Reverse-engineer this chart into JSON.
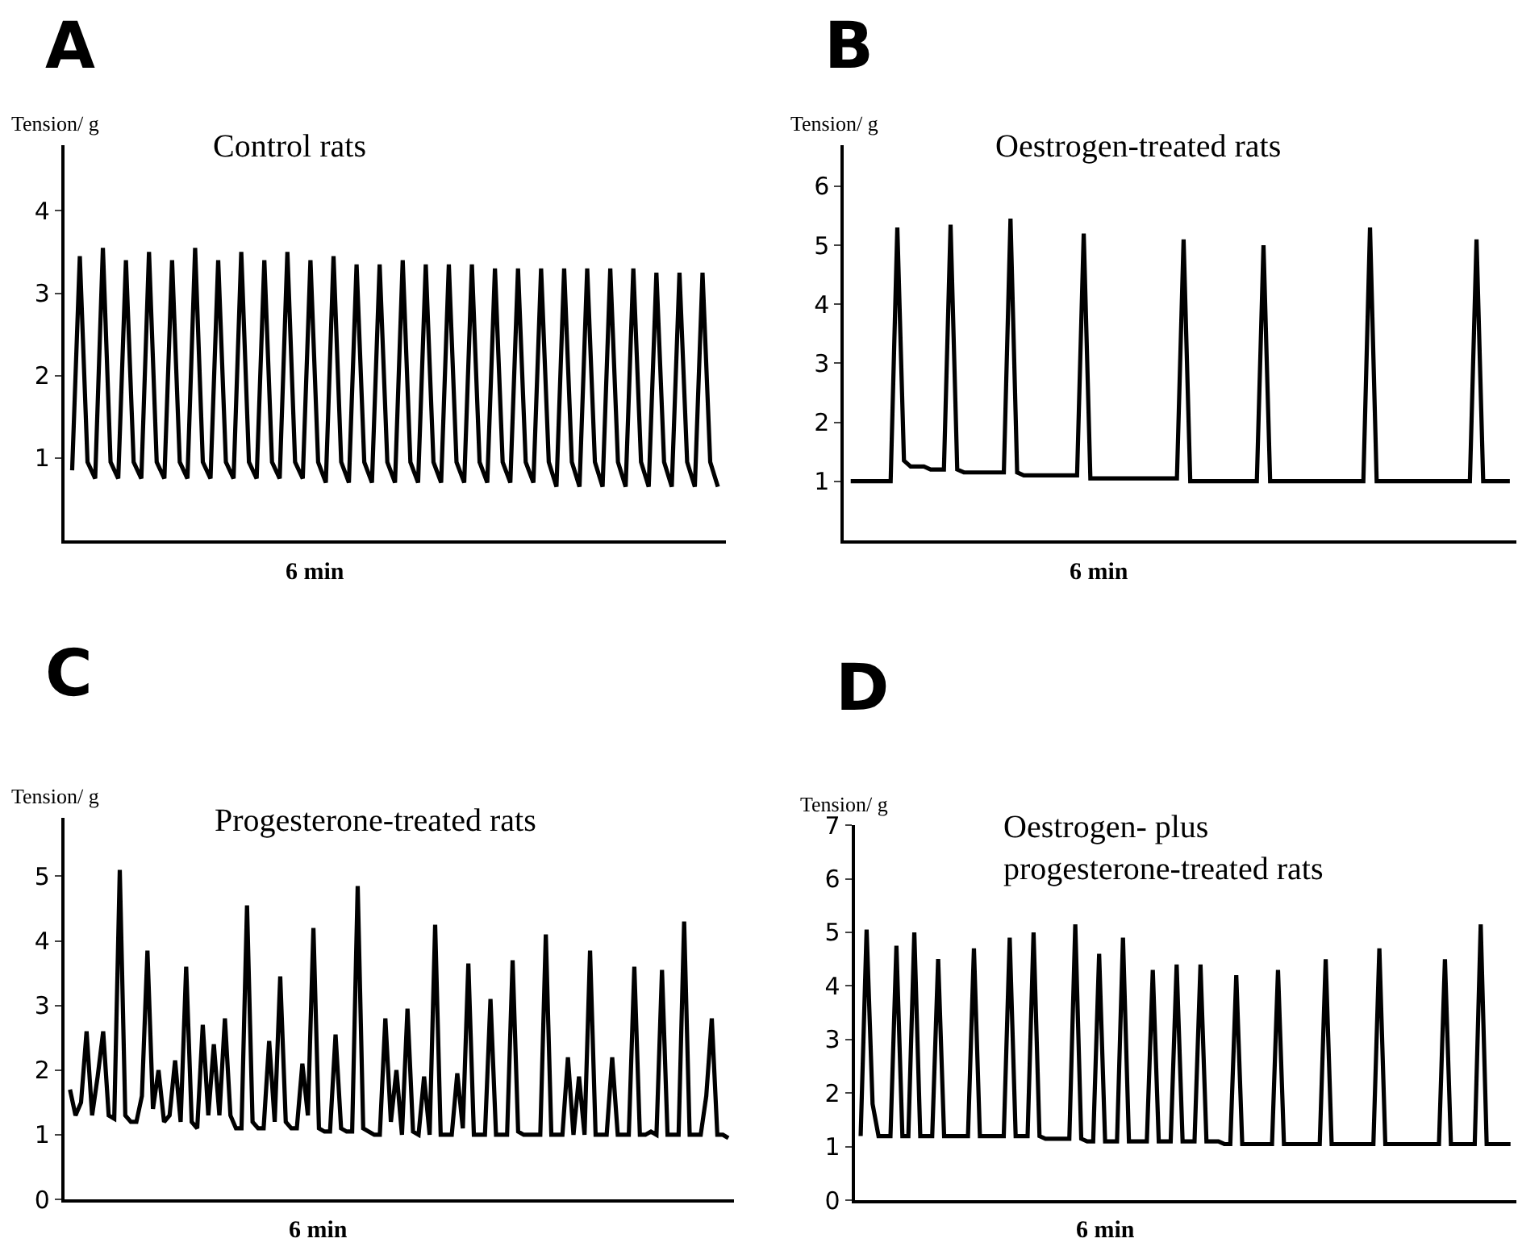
{
  "chart_data": [
    {
      "type": "line",
      "title": "A",
      "subtitle": "Control rats",
      "ylabel": "Tension/ g",
      "annotations": [
        "6 min"
      ],
      "tick_labels": "y",
      "ylim": [
        0,
        4.8
      ],
      "yticks": [
        1,
        2,
        3,
        4
      ],
      "categories": [
        null,
        null,
        null,
        null,
        null,
        null,
        null,
        null,
        null,
        null,
        null,
        null,
        null,
        null,
        null,
        null,
        null,
        null,
        null,
        null,
        null,
        null,
        null,
        null,
        null,
        null,
        null,
        null,
        null,
        null,
        null,
        null,
        null,
        null,
        null,
        null,
        null,
        null,
        null,
        null,
        null,
        null,
        null,
        null,
        null,
        null,
        null,
        null,
        null,
        null,
        null,
        null,
        null,
        null,
        null,
        null,
        null,
        null,
        null,
        null,
        null,
        null,
        null,
        null,
        null,
        null,
        null,
        null,
        null,
        null,
        null,
        null,
        null,
        null,
        null,
        null,
        null,
        null,
        null,
        null,
        null,
        null,
        null,
        null,
        null
      ],
      "series": [
        {
          "color": "#000000",
          "values": [
            0.85,
            3.45,
            0.95,
            0.75,
            3.55,
            0.95,
            0.75,
            3.4,
            0.95,
            0.75,
            3.5,
            0.95,
            0.75,
            3.4,
            0.95,
            0.75,
            3.55,
            0.95,
            0.75,
            3.4,
            0.95,
            0.75,
            3.5,
            0.95,
            0.75,
            3.4,
            0.95,
            0.75,
            3.5,
            0.95,
            0.75,
            3.4,
            0.95,
            0.7,
            3.45,
            0.95,
            0.7,
            3.35,
            0.95,
            0.7,
            3.35,
            0.95,
            0.7,
            3.4,
            0.95,
            0.7,
            3.35,
            0.95,
            0.7,
            3.35,
            0.95,
            0.7,
            3.35,
            0.95,
            0.7,
            3.3,
            0.95,
            0.7,
            3.3,
            0.95,
            0.7,
            3.3,
            0.95,
            0.65,
            3.3,
            0.95,
            0.65,
            3.3,
            0.95,
            0.65,
            3.3,
            0.95,
            0.65,
            3.3,
            0.95,
            0.65,
            3.25,
            0.95,
            0.65,
            3.25,
            0.95,
            0.65,
            3.25,
            0.95,
            0.65
          ]
        }
      ]
    },
    {
      "type": "line",
      "title": "B",
      "subtitle": "Oestrogen-treated rats",
      "ylabel": "Tension/ g",
      "annotations": [
        "6 min"
      ],
      "tick_labels": "y",
      "ylim": [
        0,
        6.7
      ],
      "yticks": [
        1,
        2,
        3,
        4,
        5,
        6
      ],
      "categories": [
        null,
        null,
        null,
        null,
        null,
        null,
        null,
        null,
        null,
        null,
        null,
        null,
        null,
        null,
        null,
        null,
        null,
        null,
        null,
        null,
        null,
        null,
        null,
        null,
        null,
        null,
        null,
        null,
        null,
        null,
        null,
        null,
        null,
        null,
        null,
        null,
        null,
        null,
        null,
        null,
        null,
        null,
        null,
        null,
        null,
        null,
        null,
        null,
        null,
        null,
        null,
        null,
        null,
        null,
        null,
        null,
        null,
        null,
        null,
        null,
        null,
        null,
        null,
        null,
        null,
        null,
        null,
        null,
        null,
        null,
        null,
        null,
        null,
        null,
        null,
        null,
        null,
        null,
        null,
        null,
        null,
        null,
        null,
        null,
        null,
        null,
        null,
        null,
        null,
        null,
        null,
        null,
        null,
        null,
        null,
        null,
        null,
        null,
        null,
        null
      ],
      "series": [
        {
          "color": "#000000",
          "values": [
            1.0,
            1.0,
            1.0,
            1.0,
            1.0,
            1.0,
            1.0,
            5.3,
            1.35,
            1.25,
            1.25,
            1.25,
            1.2,
            1.2,
            1.2,
            5.35,
            1.2,
            1.15,
            1.15,
            1.15,
            1.15,
            1.15,
            1.15,
            1.15,
            5.45,
            1.15,
            1.1,
            1.1,
            1.1,
            1.1,
            1.1,
            1.1,
            1.1,
            1.1,
            1.1,
            5.2,
            1.05,
            1.05,
            1.05,
            1.05,
            1.05,
            1.05,
            1.05,
            1.05,
            1.05,
            1.05,
            1.05,
            1.05,
            1.05,
            1.05,
            5.1,
            1.0,
            1.0,
            1.0,
            1.0,
            1.0,
            1.0,
            1.0,
            1.0,
            1.0,
            1.0,
            1.0,
            5.0,
            1.0,
            1.0,
            1.0,
            1.0,
            1.0,
            1.0,
            1.0,
            1.0,
            1.0,
            1.0,
            1.0,
            1.0,
            1.0,
            1.0,
            1.0,
            5.3,
            1.0,
            1.0,
            1.0,
            1.0,
            1.0,
            1.0,
            1.0,
            1.0,
            1.0,
            1.0,
            1.0,
            1.0,
            1.0,
            1.0,
            1.0,
            5.1,
            1.0,
            1.0,
            1.0,
            1.0,
            1.0
          ]
        }
      ]
    },
    {
      "type": "line",
      "title": "C",
      "subtitle": "Progesterone-treated rats",
      "ylabel": "Tension/ g",
      "annotations": [
        "6 min"
      ],
      "tick_labels": "y",
      "ylim": [
        0,
        5.9
      ],
      "yticks": [
        0,
        1,
        2,
        3,
        4,
        5
      ],
      "categories": [
        null,
        null,
        null,
        null,
        null,
        null,
        null,
        null,
        null,
        null,
        null,
        null,
        null,
        null,
        null,
        null,
        null,
        null,
        null,
        null,
        null,
        null,
        null,
        null,
        null,
        null,
        null,
        null,
        null,
        null,
        null,
        null,
        null,
        null,
        null,
        null,
        null,
        null,
        null,
        null,
        null,
        null,
        null,
        null,
        null,
        null,
        null,
        null,
        null,
        null,
        null,
        null,
        null,
        null,
        null,
        null,
        null,
        null,
        null,
        null,
        null,
        null,
        null,
        null,
        null,
        null,
        null,
        null,
        null,
        null,
        null,
        null,
        null,
        null,
        null,
        null,
        null,
        null,
        null,
        null,
        null,
        null,
        null,
        null,
        null,
        null,
        null,
        null,
        null,
        null,
        null,
        null,
        null,
        null,
        null,
        null,
        null,
        null,
        null,
        null,
        null,
        null,
        null,
        null,
        null,
        null,
        null,
        null,
        null,
        null,
        null,
        null,
        null,
        null,
        null,
        null,
        null,
        null,
        null,
        null
      ],
      "series": [
        {
          "color": "#000000",
          "values": [
            1.7,
            1.3,
            1.5,
            2.6,
            1.3,
            1.9,
            2.6,
            1.3,
            1.25,
            5.1,
            1.3,
            1.2,
            1.2,
            1.6,
            3.85,
            1.4,
            2.0,
            1.2,
            1.3,
            2.15,
            1.2,
            3.6,
            1.2,
            1.1,
            2.7,
            1.3,
            2.4,
            1.3,
            2.8,
            1.3,
            1.1,
            1.1,
            4.55,
            1.2,
            1.1,
            1.1,
            2.45,
            1.2,
            3.45,
            1.2,
            1.1,
            1.1,
            2.1,
            1.3,
            4.2,
            1.1,
            1.05,
            1.05,
            2.55,
            1.1,
            1.05,
            1.05,
            4.85,
            1.1,
            1.05,
            1.0,
            1.0,
            2.8,
            1.2,
            2.0,
            1.0,
            2.95,
            1.05,
            1.0,
            1.9,
            1.0,
            4.25,
            1.0,
            1.0,
            1.0,
            1.95,
            1.1,
            3.65,
            1.0,
            1.0,
            1.0,
            3.1,
            1.0,
            1.0,
            1.0,
            3.7,
            1.05,
            1.0,
            1.0,
            1.0,
            1.0,
            4.1,
            1.0,
            1.0,
            1.0,
            2.2,
            1.0,
            1.9,
            1.0,
            3.85,
            1.0,
            1.0,
            1.0,
            2.2,
            1.0,
            1.0,
            1.0,
            3.6,
            1.0,
            1.0,
            1.05,
            1.0,
            3.55,
            1.0,
            1.0,
            1.0,
            4.3,
            1.0,
            1.0,
            1.0,
            1.6,
            2.8,
            1.0,
            1.0,
            0.95
          ]
        }
      ]
    },
    {
      "type": "line",
      "title": "D",
      "subtitle": "Oestrogen- plus\nprogesterone-treated rats",
      "ylabel": "Tension/ g",
      "annotations": [
        "6 min"
      ],
      "tick_labels": "y",
      "ylim": [
        0,
        7
      ],
      "yticks": [
        0,
        1,
        2,
        3,
        4,
        5,
        6,
        7
      ],
      "categories": [
        null,
        null,
        null,
        null,
        null,
        null,
        null,
        null,
        null,
        null,
        null,
        null,
        null,
        null,
        null,
        null,
        null,
        null,
        null,
        null,
        null,
        null,
        null,
        null,
        null,
        null,
        null,
        null,
        null,
        null,
        null,
        null,
        null,
        null,
        null,
        null,
        null,
        null,
        null,
        null,
        null,
        null,
        null,
        null,
        null,
        null,
        null,
        null,
        null,
        null,
        null,
        null,
        null,
        null,
        null,
        null,
        null,
        null,
        null,
        null,
        null,
        null,
        null,
        null,
        null,
        null,
        null,
        null,
        null,
        null,
        null,
        null,
        null,
        null,
        null,
        null,
        null,
        null,
        null,
        null,
        null,
        null,
        null,
        null,
        null,
        null,
        null,
        null,
        null,
        null,
        null,
        null,
        null,
        null,
        null,
        null,
        null,
        null,
        null,
        null,
        null,
        null,
        null,
        null,
        null,
        null,
        null,
        null,
        null,
        null
      ],
      "series": [
        {
          "color": "#000000",
          "values": [
            1.2,
            5.05,
            1.8,
            1.2,
            1.2,
            1.2,
            4.75,
            1.2,
            1.2,
            5.0,
            1.2,
            1.2,
            1.2,
            4.5,
            1.2,
            1.2,
            1.2,
            1.2,
            1.2,
            4.7,
            1.2,
            1.2,
            1.2,
            1.2,
            1.2,
            4.9,
            1.2,
            1.2,
            1.2,
            5.0,
            1.2,
            1.15,
            1.15,
            1.15,
            1.15,
            1.15,
            5.15,
            1.15,
            1.1,
            1.1,
            4.6,
            1.1,
            1.1,
            1.1,
            4.9,
            1.1,
            1.1,
            1.1,
            1.1,
            4.3,
            1.1,
            1.1,
            1.1,
            4.4,
            1.1,
            1.1,
            1.1,
            4.4,
            1.1,
            1.1,
            1.1,
            1.05,
            1.05,
            4.2,
            1.05,
            1.05,
            1.05,
            1.05,
            1.05,
            1.05,
            4.3,
            1.05,
            1.05,
            1.05,
            1.05,
            1.05,
            1.05,
            1.05,
            4.5,
            1.05,
            1.05,
            1.05,
            1.05,
            1.05,
            1.05,
            1.05,
            1.05,
            4.7,
            1.05,
            1.05,
            1.05,
            1.05,
            1.05,
            1.05,
            1.05,
            1.05,
            1.05,
            1.05,
            4.5,
            1.05,
            1.05,
            1.05,
            1.05,
            1.05,
            5.15,
            1.05,
            1.05,
            1.05,
            1.05,
            1.05
          ]
        }
      ]
    }
  ]
}
